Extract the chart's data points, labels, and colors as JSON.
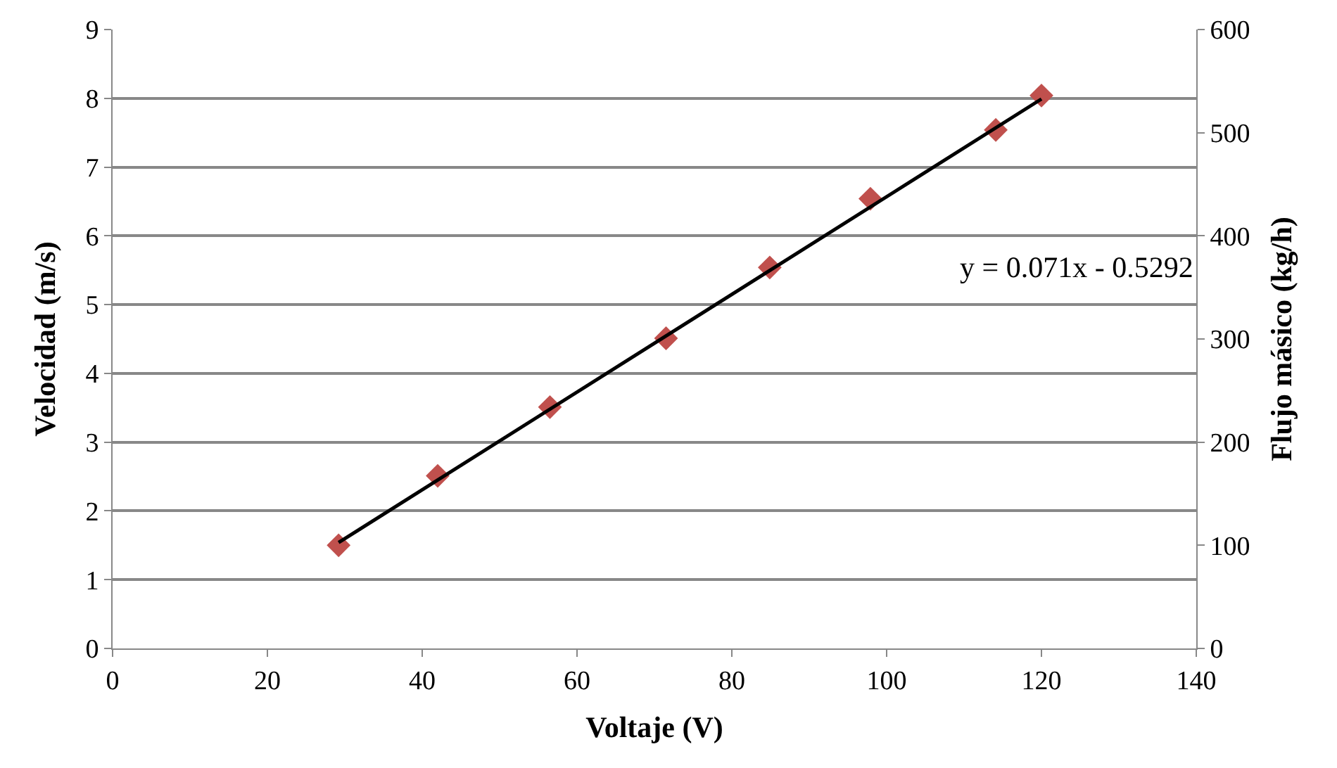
{
  "chart_data": {
    "type": "scatter",
    "xlabel": "Voltaje (V)",
    "ylabel": "Velocidad (m/s)",
    "y2label": "Flujo másico (kg/h)",
    "xlim": [
      0,
      140
    ],
    "xticks": [
      0,
      20,
      40,
      60,
      80,
      100,
      120,
      140
    ],
    "ylim": [
      0,
      9
    ],
    "yticks": [
      0,
      1,
      2,
      3,
      4,
      5,
      6,
      7,
      8,
      9
    ],
    "y2lim": [
      0,
      600
    ],
    "y2ticks": [
      0,
      100,
      200,
      300,
      400,
      500,
      600
    ],
    "grid": "y",
    "series": [
      {
        "color": "#c0504d",
        "marker": "diamond",
        "x": [
          29.2,
          42.0,
          56.5,
          71.5,
          84.9,
          97.9,
          114.1,
          120.0
        ],
        "values": [
          1.5,
          2.51,
          3.51,
          4.51,
          5.54,
          6.54,
          7.54,
          8.04
        ]
      },
      {
        "type": "line",
        "color": "#000000",
        "line_style": "solid",
        "marker": "none",
        "x": [
          29.2,
          120.0
        ],
        "values": [
          1.54,
          7.99
        ]
      }
    ],
    "annotations": [
      "y = 0.071x - 0.5292"
    ]
  }
}
